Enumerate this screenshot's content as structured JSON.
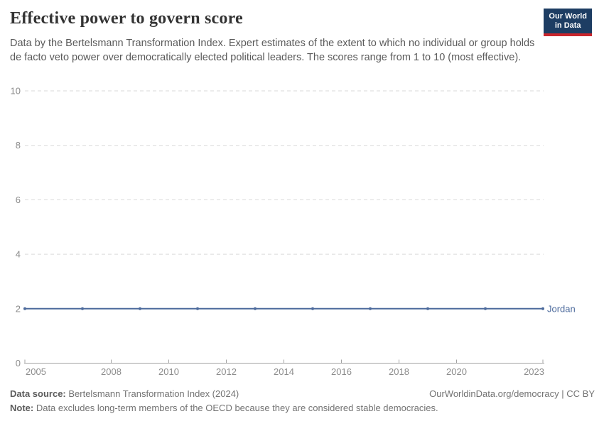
{
  "chart_data": {
    "type": "line",
    "title": "Effective power to govern score",
    "subtitle": "Data by the Bertelsmann Transformation Index. Expert estimates of the extent to which no individual or group holds de facto veto power over democratically elected political leaders. The scores range from 1 to 10 (most effective).",
    "x": [
      2005,
      2007,
      2009,
      2011,
      2013,
      2015,
      2017,
      2019,
      2021,
      2023
    ],
    "series": [
      {
        "name": "Jordan",
        "values": [
          2,
          2,
          2,
          2,
          2,
          2,
          2,
          2,
          2,
          2
        ],
        "color": "#4c6a9c"
      }
    ],
    "xlim": [
      2005,
      2023
    ],
    "ylim": [
      0,
      10
    ],
    "x_ticks": [
      2005,
      2008,
      2010,
      2012,
      2014,
      2016,
      2018,
      2020,
      2023
    ],
    "y_ticks": [
      0,
      2,
      4,
      6,
      8,
      10
    ],
    "xlabel": "",
    "ylabel": "",
    "grid": "horizontal-dashed",
    "legend_position": "line-end-label"
  },
  "logo": {
    "line1": "Our World",
    "line2": "in Data",
    "bg_color": "#1d3d63",
    "accent_color": "#c9252c"
  },
  "footer": {
    "source_label": "Data source:",
    "source_value": " Bertelsmann Transformation Index (2024)",
    "attribution": "OurWorldinData.org/democracy | CC BY",
    "note_label": "Note:",
    "note_value": " Data excludes long-term members of the OECD because they are considered stable democracies."
  },
  "colors": {
    "title_text": "#333333",
    "subtitle_text": "#5a5a5a",
    "axis_text": "#8c8c8c",
    "axis_line": "#a3a3a3",
    "gridline": "#d9d9d9",
    "series_label": "#4c6a9c"
  }
}
